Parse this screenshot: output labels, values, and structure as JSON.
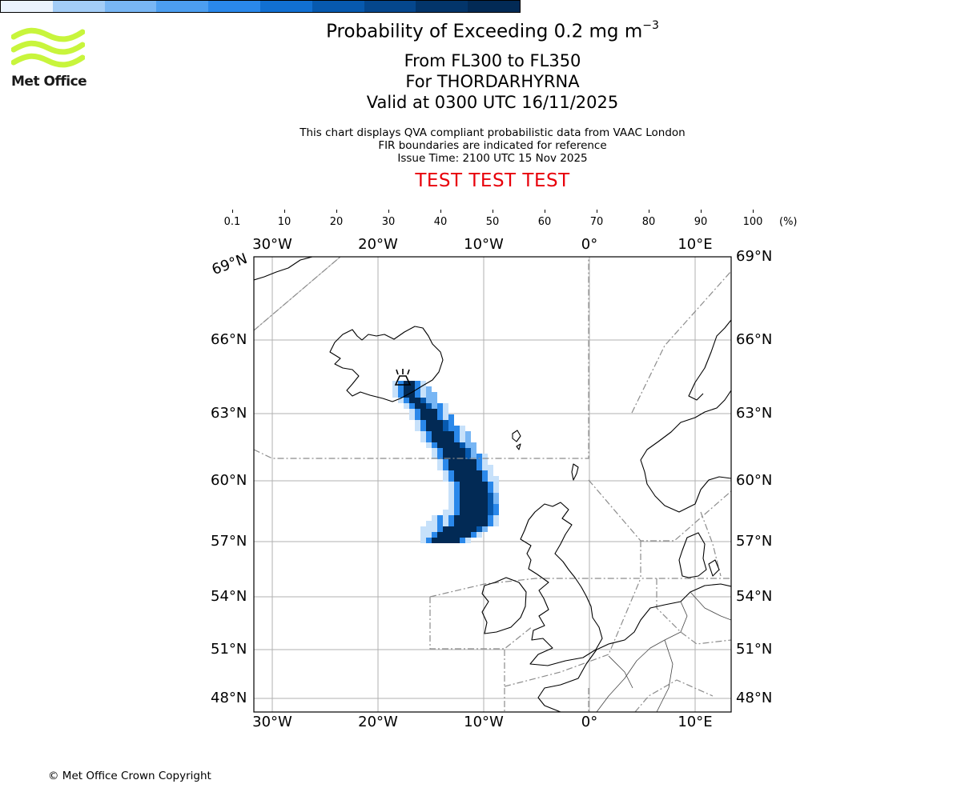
{
  "header": {
    "title_main": "Probability of Exceeding 0.2 mg m",
    "title_exponent": "−3",
    "level_range": "From FL300 to FL350",
    "volcano": "For THORDARHYRNA",
    "valid_time": "Valid at 0300 UTC 16/11/2025",
    "note_1": "This chart displays QVA compliant probabilistic data from VAAC London",
    "note_2": "FIR boundaries are indicated for reference",
    "issue_time": "Issue Time: 2100 UTC 15 Nov 2025",
    "test_banner": "TEST TEST TEST"
  },
  "logo": {
    "text": "Met Office",
    "color": "#c8f53c"
  },
  "colorbar": {
    "ticks": [
      "0.1",
      "10",
      "20",
      "30",
      "40",
      "50",
      "60",
      "70",
      "80",
      "90",
      "100"
    ],
    "unit": "(%)",
    "colors": [
      "#eaf3fd",
      "#c7e1fa",
      "#a3cdf7",
      "#78b6f4",
      "#4c9ef0",
      "#2a88ea",
      "#1170d2",
      "#0759ae",
      "#05478d",
      "#03356a",
      "#022a55"
    ]
  },
  "map": {
    "lon_labels": [
      "30°W",
      "20°W",
      "10°W",
      "0°",
      "10°E"
    ],
    "lat_labels": [
      "48°N",
      "51°N",
      "54°N",
      "57°N",
      "60°N",
      "63°N",
      "66°N",
      "69°N"
    ],
    "left_top_lat_label": "69°N",
    "colors": {
      "grid": "#b0b0b0",
      "coast": "#000000",
      "fir": "#8c8c8c"
    }
  },
  "footer": {
    "copyright": "© Met Office Crown Copyright"
  }
}
